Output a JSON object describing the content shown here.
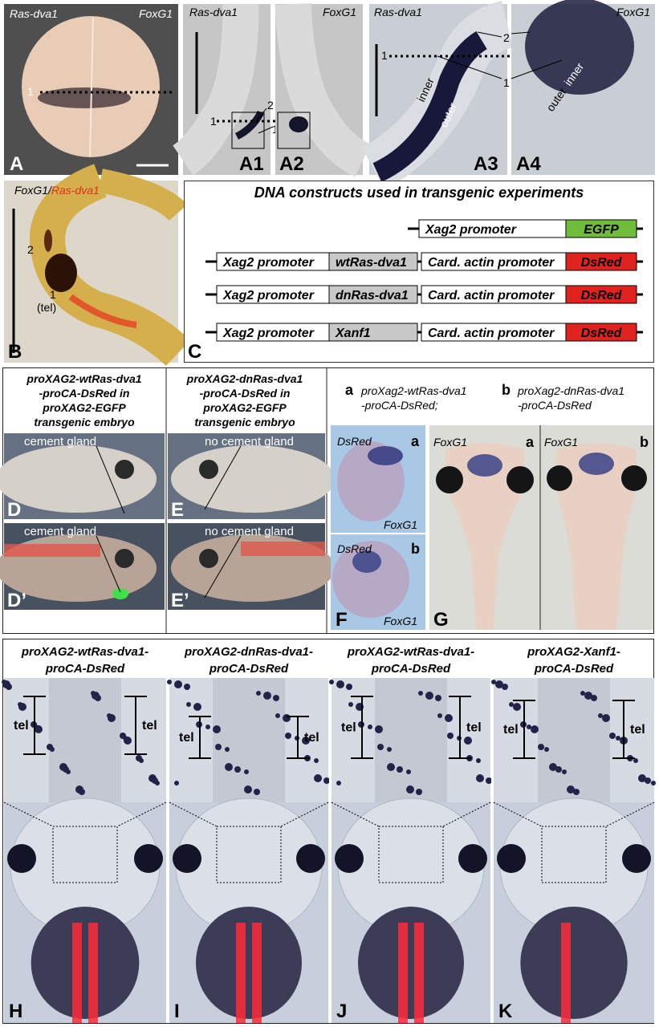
{
  "panel_a": {
    "gene_left": "Ras-dva1",
    "gene_right": "FoxG1",
    "line_label": "1",
    "letter": "A"
  },
  "panel_a1": {
    "gene": "Ras-dva1",
    "numbers": [
      "1",
      "2",
      "1"
    ],
    "letter": "A1"
  },
  "panel_a2": {
    "gene": "FoxG1",
    "letter": "A2"
  },
  "panel_a3": {
    "gene": "Ras-dva1",
    "numbers": [
      "1",
      "2",
      "1"
    ],
    "inner": "inner",
    "outer": "outer",
    "letter": "A3"
  },
  "panel_a4": {
    "gene": "FoxG1",
    "inner": "inner",
    "outer": "outer",
    "letter": "A4"
  },
  "panel_b": {
    "gene_1": "FoxG1/",
    "gene_2": "Ras-dva1",
    "numbers": [
      "2",
      "1"
    ],
    "region": "(tel)",
    "letter": "B"
  },
  "panel_c": {
    "title": "DNA constructs used in transgenic experiments",
    "constructs": [
      [
        "Xag2 promoter",
        "EGFP"
      ],
      [
        "Xag2 promoter",
        "wtRas-dva1",
        "Card. actin promoter",
        "DsRed"
      ],
      [
        "Xag2 promoter",
        "dnRas-dva1",
        "Card. actin promoter",
        "DsRed"
      ],
      [
        "Xag2 promoter",
        "Xanf1",
        "Card. actin promoter",
        "DsRed"
      ]
    ],
    "letter": "C"
  },
  "panel_d": {
    "caption": [
      "proXAG2-wtRas-dva1",
      "-proCA-DsRed in",
      "proXAG2-EGFP",
      "transgenic embryo"
    ],
    "label_top": "cement gland",
    "letter_top": "D",
    "label_bottom": "cement gland",
    "letter_bottom": "D’"
  },
  "panel_e": {
    "caption": [
      "proXAG2-dnRas-dva1",
      "-proCA-DsRed in",
      "proXAG2-EGFP",
      "transgenic embryo"
    ],
    "label_top": "no cement gland",
    "letter_top": "E",
    "label_bottom": "no cement gland",
    "letter_bottom": "E’"
  },
  "panel_fg": {
    "legend": [
      {
        "key": "a",
        "lines": [
          "proXag2-wtRas-dva1",
          "-proCA-DsRed;"
        ]
      },
      {
        "key": "b",
        "lines": [
          "proXag2-dnRas-dva1",
          "-proCA-DsRed"
        ]
      }
    ],
    "f_a": {
      "marker": "DsRed",
      "key": "a",
      "gene": "FoxG1"
    },
    "f_b": {
      "marker": "DsRed",
      "key": "b",
      "gene": "FoxG1"
    },
    "letter_f": "F",
    "g_a": {
      "gene": "FoxG1",
      "key": "a"
    },
    "g_b": {
      "gene": "FoxG1",
      "key": "b"
    },
    "letter_g": "G"
  },
  "panels_hk": [
    {
      "caption": [
        "proXAG2-wtRas-dva1-",
        "proCA-DsRed"
      ],
      "tel": [
        "tel",
        "tel"
      ],
      "letter": "H"
    },
    {
      "caption": [
        "proXAG2-dnRas-dva1-",
        "proCA-DsRed"
      ],
      "tel": [
        "tel",
        "tel"
      ],
      "letter": "I"
    },
    {
      "caption": [
        "proXAG2-wtRas-dva1-",
        "proCA-DsRed"
      ],
      "tel": [
        "tel",
        "tel"
      ],
      "letter": "J"
    },
    {
      "caption": [
        "proXAG2-Xanf1-",
        "proCA-DsRed"
      ],
      "tel": [
        "tel",
        "tel"
      ],
      "letter": "K"
    }
  ]
}
